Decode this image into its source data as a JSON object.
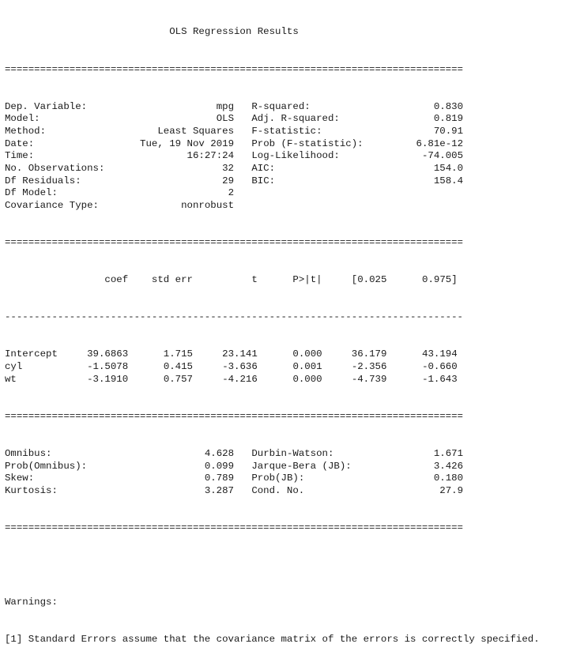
{
  "title": "OLS Regression Results",
  "separators": {
    "double": "==============================================================================",
    "single": "------------------------------------------------------------------------------"
  },
  "model_info": [
    {
      "left_label": "Dep. Variable:",
      "left_value": "mpg",
      "right_label": "R-squared:",
      "right_value": "0.830"
    },
    {
      "left_label": "Model:",
      "left_value": "OLS",
      "right_label": "Adj. R-squared:",
      "right_value": "0.819"
    },
    {
      "left_label": "Method:",
      "left_value": "Least Squares",
      "right_label": "F-statistic:",
      "right_value": "70.91"
    },
    {
      "left_label": "Date:",
      "left_value": "Tue, 19 Nov 2019",
      "right_label": "Prob (F-statistic):",
      "right_value": "6.81e-12"
    },
    {
      "left_label": "Time:",
      "left_value": "16:27:24",
      "right_label": "Log-Likelihood:",
      "right_value": "-74.005"
    },
    {
      "left_label": "No. Observations:",
      "left_value": "32",
      "right_label": "AIC:",
      "right_value": "154.0"
    },
    {
      "left_label": "Df Residuals:",
      "left_value": "29",
      "right_label": "BIC:",
      "right_value": "158.4"
    },
    {
      "left_label": "Df Model:",
      "left_value": "2",
      "right_label": "",
      "right_value": ""
    },
    {
      "left_label": "Covariance Type:",
      "left_value": "nonrobust",
      "right_label": "",
      "right_value": ""
    }
  ],
  "coef_headers": [
    "",
    "coef",
    "std err",
    "t",
    "P>|t|",
    "[0.025",
    "0.975]"
  ],
  "coef_rows": [
    [
      "Intercept",
      "39.6863",
      "1.715",
      "23.141",
      "0.000",
      "36.179",
      "43.194"
    ],
    [
      "cyl",
      "-1.5078",
      "0.415",
      "-3.636",
      "0.001",
      "-2.356",
      "-0.660"
    ],
    [
      "wt",
      "-3.1910",
      "0.757",
      "-4.216",
      "0.000",
      "-4.739",
      "-1.643"
    ]
  ],
  "diagnostics": [
    {
      "left_label": "Omnibus:",
      "left_value": "4.628",
      "right_label": "Durbin-Watson:",
      "right_value": "1.671"
    },
    {
      "left_label": "Prob(Omnibus):",
      "left_value": "0.099",
      "right_label": "Jarque-Bera (JB):",
      "right_value": "3.426"
    },
    {
      "left_label": "Skew:",
      "left_value": "0.789",
      "right_label": "Prob(JB):",
      "right_value": "0.180"
    },
    {
      "left_label": "Kurtosis:",
      "left_value": "3.287",
      "right_label": "Cond. No.",
      "right_value": "27.9"
    }
  ],
  "warnings_heading": "Warnings:",
  "warnings": [
    "[1] Standard Errors assume that the covariance matrix of the errors is correctly specified."
  ]
}
